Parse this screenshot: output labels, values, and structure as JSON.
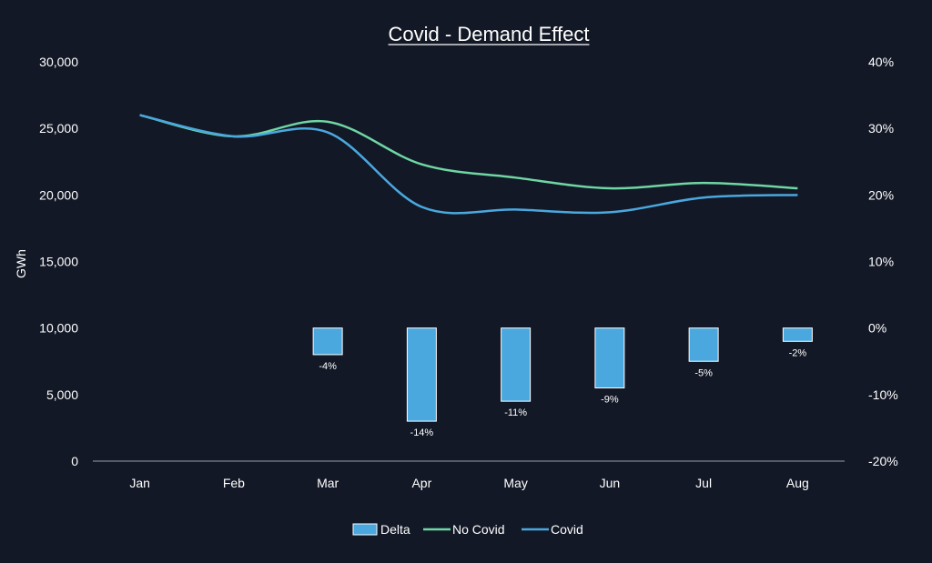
{
  "colors": {
    "background": "#121826",
    "bar": "#4aa8de",
    "bar_border": "#ffffff",
    "no_covid_line": "#6fd6a4",
    "covid_line": "#4aa8de",
    "axis": "#9aa0a8",
    "watermark": "#3a4150"
  },
  "watermark": "watermark-logo",
  "chart_data": {
    "type": "bar",
    "title": "Covid - Demand Effect",
    "xlabel": "",
    "ylabel": "GWh",
    "categories": [
      "Jan",
      "Feb",
      "Mar",
      "Apr",
      "May",
      "Jun",
      "Jul",
      "Aug"
    ],
    "ylim": [
      0,
      30000
    ],
    "y2lim": [
      -0.2,
      0.4
    ],
    "yticks": [
      "0",
      "5,000",
      "10,000",
      "15,000",
      "20,000",
      "25,000",
      "30,000"
    ],
    "y2ticks": [
      "-20%",
      "-10%",
      "0%",
      "10%",
      "20%",
      "30%",
      "40%"
    ],
    "legend_position": "bottom",
    "grid": false,
    "series": [
      {
        "name": "Delta",
        "type": "bar",
        "axis": "right",
        "values": [
          null,
          null,
          -0.04,
          -0.14,
          -0.11,
          -0.09,
          -0.05,
          -0.02
        ],
        "labels": [
          "",
          "",
          "-4%",
          "-14%",
          "-11%",
          "-9%",
          "-5%",
          "-2%"
        ]
      },
      {
        "name": "No Covid",
        "type": "line",
        "axis": "left",
        "values": [
          26000,
          24400,
          25500,
          22300,
          21300,
          20500,
          20900,
          20500
        ]
      },
      {
        "name": "Covid",
        "type": "line",
        "axis": "left",
        "values": [
          26000,
          24400,
          24700,
          19100,
          18900,
          18700,
          19800,
          20000
        ]
      }
    ]
  }
}
